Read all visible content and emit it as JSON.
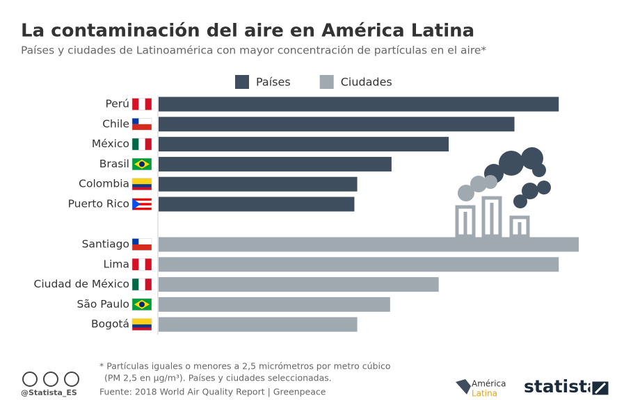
{
  "chart_data": {
    "type": "bar",
    "orientation": "horizontal",
    "title": "La contaminación del aire en América Latina",
    "subtitle": "Países y ciudades de Latinoamérica con mayor concentración de partículas en el aire*",
    "groups": [
      {
        "name": "Países",
        "color": "#3e4e5e",
        "categories": [
          "Perú",
          "Chile",
          "México",
          "Brasil",
          "Colombia",
          "Puerto Rico"
        ],
        "values": [
          28.0,
          24.9,
          20.3,
          16.3,
          13.9,
          13.7
        ]
      },
      {
        "name": "Ciudades",
        "color": "#a0a8b0",
        "categories": [
          "Santiago",
          "Lima",
          "Ciudad de México",
          "São Paulo",
          "Bogotá"
        ],
        "values": [
          29.4,
          28.0,
          19.6,
          16.2,
          13.9
        ]
      }
    ],
    "notes": [
      "* Partículas iguales o menores a 2,5 micrómetros por metro cúbico",
      "(PM 2,5 en µg/m³). Países y ciudades seleccionadas."
    ],
    "source": "Fuente: 2018 World Air Quality Report | Greenpeace",
    "credit": "@Statista_ES",
    "partner": [
      "América",
      "Latina"
    ],
    "brand": "statista"
  }
}
